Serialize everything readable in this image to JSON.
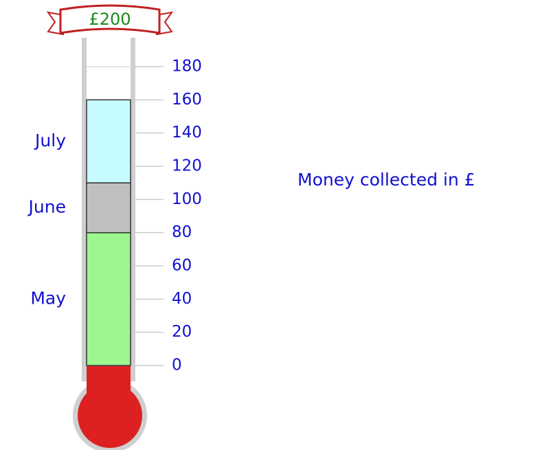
{
  "chart_data": {
    "type": "bar",
    "stacked": true,
    "title": "Money collected in £",
    "goal_label": "£200",
    "categories": [
      null
    ],
    "series": [
      {
        "name": "May",
        "color": "#9cf78f",
        "values": [
          80
        ]
      },
      {
        "name": "June",
        "color": "#c0c0c0",
        "values": [
          30
        ]
      },
      {
        "name": "July",
        "color": "#c6fbff",
        "values": [
          50
        ]
      }
    ],
    "ylim": [
      0,
      180
    ],
    "yticks": [
      0,
      20,
      40,
      60,
      80,
      100,
      120,
      140,
      160,
      180
    ],
    "grid": true
  }
}
